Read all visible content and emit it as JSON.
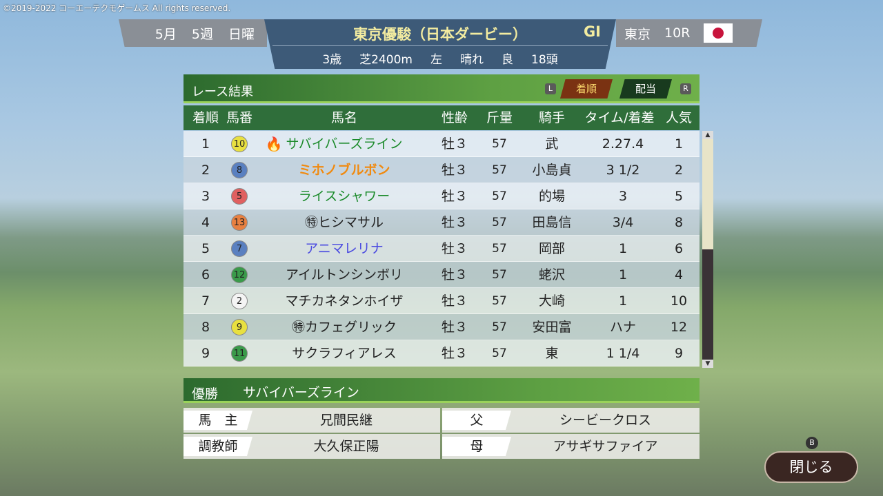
{
  "copyright": "©2019-2022 コーエーテクモゲームス All rights reserved.",
  "header": {
    "month": "5月",
    "week": "5週",
    "day": "日曜",
    "race_name": "東京優駿（日本ダービー）",
    "grade": "GⅠ",
    "age": "3歳",
    "surface": "芝2400m",
    "direction": "左",
    "weather": "晴れ",
    "condition": "良",
    "runners": "18頭",
    "course": "東京",
    "race_no": "10R",
    "flag": "japan-flag"
  },
  "panel": {
    "title": "レース結果",
    "key_left": "L",
    "key_right": "R",
    "tabs": [
      "着順",
      "配当"
    ],
    "active_tab": "着順"
  },
  "columns": [
    "着順",
    "馬番",
    "馬名",
    "性齢",
    "斤量",
    "騎手",
    "タイム/着差",
    "人気"
  ],
  "rows": [
    {
      "rank": "1",
      "num": "10",
      "num_color": "#e8e040",
      "icon": "fire-icon",
      "name": "サバイバーズライン",
      "name_color": "#1a8a2a",
      "sex": "牡３",
      "weight": "57",
      "jockey": "武",
      "time": "2.27.4",
      "pop": "1"
    },
    {
      "rank": "2",
      "num": "8",
      "num_color": "#5a80c0",
      "name": "ミホノブルボン",
      "name_color": "#f08a10",
      "sex": "牡３",
      "weight": "57",
      "jockey": "小島貞",
      "time": "3 1/2",
      "pop": "2"
    },
    {
      "rank": "3",
      "num": "5",
      "num_color": "#e06060",
      "name": "ライスシャワー",
      "name_color": "#1a8a2a",
      "sex": "牡３",
      "weight": "57",
      "jockey": "的場",
      "time": "3",
      "pop": "5"
    },
    {
      "rank": "4",
      "num": "13",
      "num_color": "#e88040",
      "name": "㊕ヒシマサル",
      "name_color": "#222",
      "sex": "牡３",
      "weight": "57",
      "jockey": "田島信",
      "time": "3/4",
      "pop": "8"
    },
    {
      "rank": "5",
      "num": "7",
      "num_color": "#5a80c0",
      "name": "アニマレリナ",
      "name_color": "#4a4ae0",
      "sex": "牡３",
      "weight": "57",
      "jockey": "岡部",
      "time": "1",
      "pop": "6"
    },
    {
      "rank": "6",
      "num": "12",
      "num_color": "#3a9a4a",
      "name": "アイルトンシンボリ",
      "name_color": "#222",
      "sex": "牡３",
      "weight": "57",
      "jockey": "蛯沢",
      "time": "1",
      "pop": "4"
    },
    {
      "rank": "7",
      "num": "2",
      "num_color": "#f4f4f4",
      "name": "マチカネタンホイザ",
      "name_color": "#222",
      "sex": "牡３",
      "weight": "57",
      "jockey": "大崎",
      "time": "1",
      "pop": "10"
    },
    {
      "rank": "8",
      "num": "9",
      "num_color": "#e8e040",
      "name": "㊕カフェグリック",
      "name_color": "#222",
      "sex": "牡３",
      "weight": "57",
      "jockey": "安田富",
      "time": "ハナ",
      "pop": "12"
    },
    {
      "rank": "9",
      "num": "11",
      "num_color": "#3a9a4a",
      "name": "サクラフィアレス",
      "name_color": "#222",
      "sex": "牡３",
      "weight": "57",
      "jockey": "東",
      "time": "1 1/4",
      "pop": "9"
    }
  ],
  "winner": {
    "label": "優勝",
    "name": "サバイバーズライン",
    "owner_label": "馬　主",
    "owner": "兄間民継",
    "trainer_label": "調教師",
    "trainer": "大久保正陽",
    "sire_label": "父",
    "sire": "シービークロス",
    "dam_label": "母",
    "dam": "アサギサファイア"
  },
  "close": {
    "key": "B",
    "label": "閉じる"
  }
}
